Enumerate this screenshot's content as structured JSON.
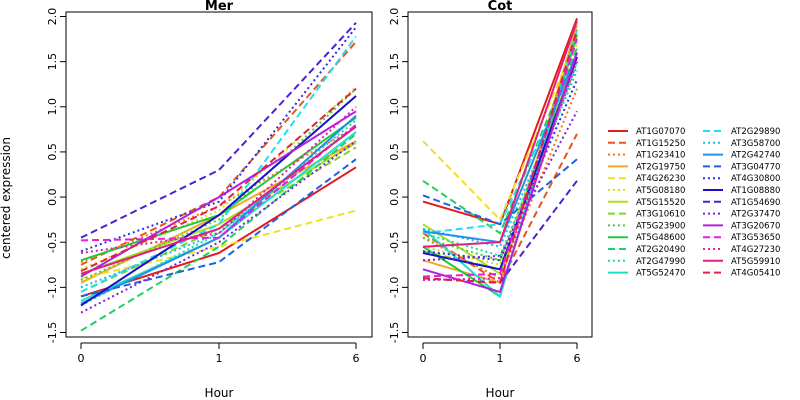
{
  "ylabel": "centered expression",
  "xlabel": "Hour",
  "x_ticks": [
    "0",
    "1",
    "6"
  ],
  "y_ticks": [
    "-1.5",
    "-1.0",
    "-0.5",
    "0.0",
    "0.5",
    "1.0",
    "1.5",
    "2.0"
  ],
  "chart_data": [
    {
      "type": "line",
      "title": "Mer",
      "xlabel": "Hour",
      "ylabel": "centered expression",
      "categories": [
        "0",
        "1",
        "6"
      ],
      "ylim": [
        -1.55,
        2.05
      ],
      "grid": false,
      "series": [
        {
          "name": "AT1G07070",
          "values": [
            -1.1,
            -0.62,
            0.33
          ]
        },
        {
          "name": "AT1G15250",
          "values": [
            -0.75,
            0.0,
            1.72
          ]
        },
        {
          "name": "AT1G23410",
          "values": [
            -0.72,
            -0.1,
            0.78
          ]
        },
        {
          "name": "AT2G19750",
          "values": [
            -0.95,
            -0.2,
            0.62
          ]
        },
        {
          "name": "AT4G26230",
          "values": [
            -0.9,
            -0.55,
            -0.15
          ]
        },
        {
          "name": "AT5G08180",
          "values": [
            -0.8,
            -0.15,
            1.22
          ]
        },
        {
          "name": "AT5G15520",
          "values": [
            -0.85,
            -0.3,
            0.6
          ]
        },
        {
          "name": "AT3G10610",
          "values": [
            -1.05,
            -0.35,
            0.55
          ]
        },
        {
          "name": "AT5G23900",
          "values": [
            -0.92,
            -0.25,
            1.2
          ]
        },
        {
          "name": "AT5G48600",
          "values": [
            -0.7,
            -0.2,
            0.88
          ]
        },
        {
          "name": "AT2G20490",
          "values": [
            -1.48,
            -0.55,
            0.7
          ]
        },
        {
          "name": "AT2G47990",
          "values": [
            -1.2,
            -0.4,
            0.85
          ]
        },
        {
          "name": "AT5G52470",
          "values": [
            -1.15,
            -0.45,
            0.72
          ]
        },
        {
          "name": "AT2G29890",
          "values": [
            -1.05,
            -0.3,
            1.78
          ]
        },
        {
          "name": "AT3G58700",
          "values": [
            -1.0,
            -0.4,
            0.8
          ]
        },
        {
          "name": "AT2G42740",
          "values": [
            -1.18,
            -0.45,
            0.9
          ]
        },
        {
          "name": "AT3G04770",
          "values": [
            -1.1,
            -0.72,
            0.42
          ]
        },
        {
          "name": "AT4G30800",
          "values": [
            -0.6,
            -0.05,
            1.88
          ]
        },
        {
          "name": "AT1G08880",
          "values": [
            -1.2,
            -0.2,
            1.12
          ]
        },
        {
          "name": "AT1G54690",
          "values": [
            -0.45,
            0.3,
            1.93
          ]
        },
        {
          "name": "AT2G37470",
          "values": [
            -1.28,
            -0.5,
            0.62
          ]
        },
        {
          "name": "AT3G20670",
          "values": [
            -0.88,
            0.0,
            0.95
          ]
        },
        {
          "name": "AT3G53650",
          "values": [
            -0.48,
            -0.45,
            0.8
          ]
        },
        {
          "name": "AT4G27230",
          "values": [
            -0.62,
            -0.4,
            1.0
          ]
        },
        {
          "name": "AT5G59910",
          "values": [
            -0.85,
            -0.35,
            0.78
          ]
        },
        {
          "name": "AT4G05410",
          "values": [
            -0.82,
            -0.1,
            1.2
          ]
        }
      ]
    },
    {
      "type": "line",
      "title": "Cot",
      "xlabel": "Hour",
      "ylabel": "",
      "categories": [
        "0",
        "1",
        "6"
      ],
      "ylim": [
        -1.55,
        2.05
      ],
      "grid": false,
      "series": [
        {
          "name": "AT1G07070",
          "values": [
            -0.05,
            -0.3,
            1.98
          ]
        },
        {
          "name": "AT1G15250",
          "values": [
            -0.4,
            -0.95,
            0.7
          ]
        },
        {
          "name": "AT1G23410",
          "values": [
            -0.45,
            -0.9,
            1.2
          ]
        },
        {
          "name": "AT2G19750",
          "values": [
            -0.7,
            -0.95,
            1.9
          ]
        },
        {
          "name": "AT4G26230",
          "values": [
            0.62,
            -0.25,
            1.75
          ]
        },
        {
          "name": "AT5G08180",
          "values": [
            -0.55,
            -0.75,
            1.7
          ]
        },
        {
          "name": "AT5G15520",
          "values": [
            -0.3,
            -0.85,
            1.6
          ]
        },
        {
          "name": "AT3G10610",
          "values": [
            -0.6,
            -0.8,
            1.5
          ]
        },
        {
          "name": "AT5G23900",
          "values": [
            -0.45,
            -0.7,
            1.55
          ]
        },
        {
          "name": "AT5G48600",
          "values": [
            -0.55,
            -1.1,
            1.8
          ]
        },
        {
          "name": "AT2G20490",
          "values": [
            0.18,
            -0.4,
            1.65
          ]
        },
        {
          "name": "AT2G47990",
          "values": [
            -0.4,
            -0.65,
            1.4
          ]
        },
        {
          "name": "AT5G52470",
          "values": [
            -0.35,
            -1.1,
            1.85
          ]
        },
        {
          "name": "AT2G29890",
          "values": [
            -0.4,
            -0.3,
            1.5
          ]
        },
        {
          "name": "AT3G58700",
          "values": [
            -0.35,
            -0.55,
            1.45
          ]
        },
        {
          "name": "AT2G42740",
          "values": [
            -0.38,
            -0.5,
            1.6
          ]
        },
        {
          "name": "AT3G04770",
          "values": [
            0.02,
            -0.3,
            0.42
          ]
        },
        {
          "name": "AT4G30800",
          "values": [
            -0.6,
            -0.7,
            1.3
          ]
        },
        {
          "name": "AT1G08880",
          "values": [
            -0.62,
            -0.8,
            1.55
          ]
        },
        {
          "name": "AT1G54690",
          "values": [
            -0.9,
            -0.95,
            0.18
          ]
        },
        {
          "name": "AT2G37470",
          "values": [
            -0.7,
            -0.65,
            0.95
          ]
        },
        {
          "name": "AT3G20670",
          "values": [
            -0.8,
            -1.05,
            1.6
          ]
        },
        {
          "name": "AT3G53650",
          "values": [
            -0.88,
            -0.85,
            1.75
          ]
        },
        {
          "name": "AT4G27230",
          "values": [
            -0.92,
            -0.9,
            1.5
          ]
        },
        {
          "name": "AT5G59910",
          "values": [
            -0.55,
            -0.5,
            1.95
          ]
        },
        {
          "name": "AT4G05410",
          "values": [
            -0.9,
            -0.95,
            1.85
          ]
        }
      ]
    }
  ],
  "legend": {
    "placement": "right",
    "entries": [
      {
        "label": "AT1G07070",
        "color": "#e31a1c",
        "dash": "solid"
      },
      {
        "label": "AT1G15250",
        "color": "#e8541e",
        "dash": "dashed"
      },
      {
        "label": "AT1G23410",
        "color": "#f07818",
        "dash": "dotted"
      },
      {
        "label": "AT2G19750",
        "color": "#f5a623",
        "dash": "solid"
      },
      {
        "label": "AT4G26230",
        "color": "#f0e020",
        "dash": "dashed"
      },
      {
        "label": "AT5G08180",
        "color": "#d4e020",
        "dash": "dotted"
      },
      {
        "label": "AT5G15520",
        "color": "#a8e020",
        "dash": "solid"
      },
      {
        "label": "AT3G10610",
        "color": "#7ad920",
        "dash": "dashed"
      },
      {
        "label": "AT5G23900",
        "color": "#45d030",
        "dash": "dotted"
      },
      {
        "label": "AT5G48600",
        "color": "#22c83c",
        "dash": "solid"
      },
      {
        "label": "AT2G20490",
        "color": "#20d060",
        "dash": "dashed"
      },
      {
        "label": "AT2G47990",
        "color": "#20d8a0",
        "dash": "dotted"
      },
      {
        "label": "AT5G52470",
        "color": "#20e0c8",
        "dash": "solid"
      },
      {
        "label": "AT2G29890",
        "color": "#20e0f0",
        "dash": "dashed"
      },
      {
        "label": "AT3G58700",
        "color": "#20b8f0",
        "dash": "dotted"
      },
      {
        "label": "AT2G42740",
        "color": "#2090e8",
        "dash": "solid"
      },
      {
        "label": "AT3G04770",
        "color": "#2060e0",
        "dash": "dashed"
      },
      {
        "label": "AT4G30800",
        "color": "#2830e0",
        "dash": "dotted"
      },
      {
        "label": "AT1G08880",
        "color": "#1a10c8",
        "dash": "solid"
      },
      {
        "label": "AT1G54690",
        "color": "#5020d0",
        "dash": "dashed"
      },
      {
        "label": "AT2G37470",
        "color": "#8020d8",
        "dash": "dotted"
      },
      {
        "label": "AT3G20670",
        "color": "#b020e0",
        "dash": "solid"
      },
      {
        "label": "AT3G53650",
        "color": "#e020e0",
        "dash": "dashed"
      },
      {
        "label": "AT4G27230",
        "color": "#e020b0",
        "dash": "dotted"
      },
      {
        "label": "AT5G59910",
        "color": "#e02080",
        "dash": "solid"
      },
      {
        "label": "AT4G05410",
        "color": "#e0204c",
        "dash": "dashed"
      }
    ]
  }
}
